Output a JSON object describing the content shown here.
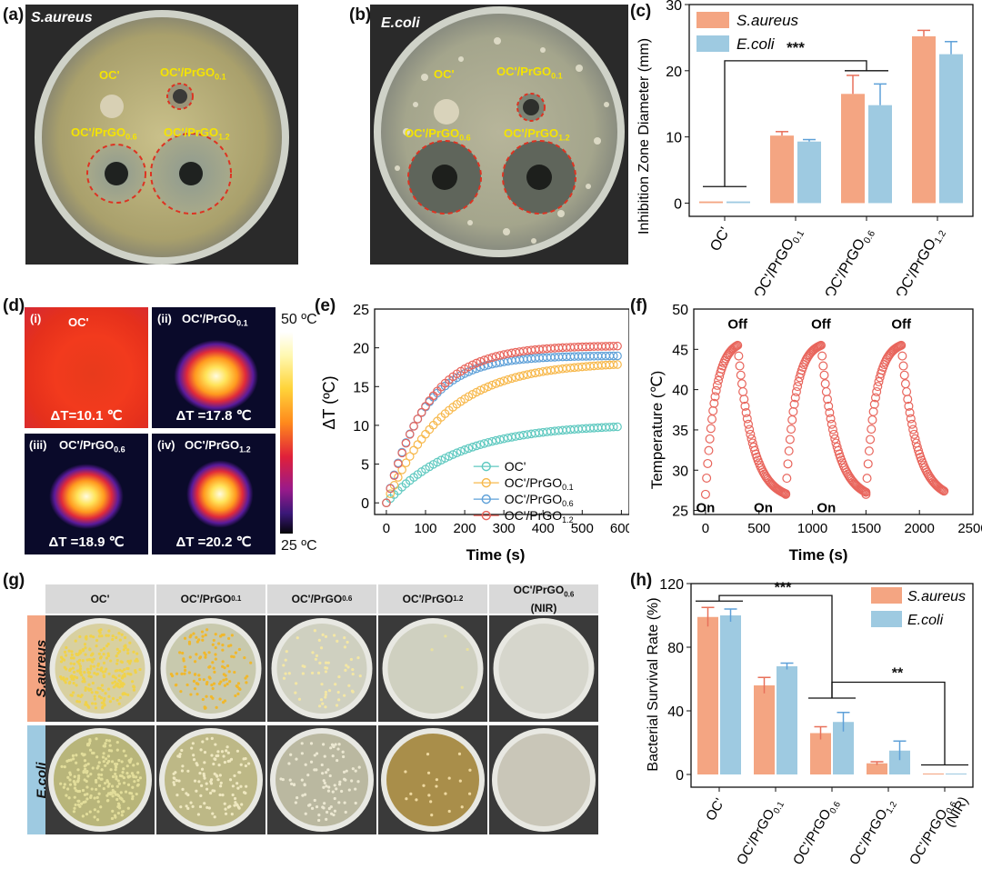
{
  "labels": {
    "a": "(a)",
    "b": "(b)",
    "c": "(c)",
    "d": "(d)",
    "e": "(e)",
    "f": "(f)",
    "g": "(g)",
    "h": "(h)"
  },
  "panel_a": {
    "title": "S.aureus",
    "samples": [
      "OC'",
      "OC'/PrGO0.1",
      "OC'/PrGO0.6",
      "OC'/PrGO1.2"
    ]
  },
  "panel_b": {
    "title": "E.coli",
    "samples": [
      "OC'",
      "OC'/PrGO0.1",
      "OC'/PrGO0.6",
      "OC'/PrGO1.2"
    ]
  },
  "panel_d": {
    "images": [
      {
        "tag": "(i)",
        "name": "OC'",
        "dt": "ΔT=10.1 ℃"
      },
      {
        "tag": "(ii)",
        "name": "OC'/PrGO0.1",
        "dt": "ΔT =17.8 ℃"
      },
      {
        "tag": "(iii)",
        "name": "OC'/PrGO0.6",
        "dt": "ΔT =18.9 ℃"
      },
      {
        "tag": "(iv)",
        "name": "OC'/PrGO1.2",
        "dt": "ΔT =20.2 ℃"
      }
    ],
    "scale_max": "50 ºC",
    "scale_min": "25 ºC"
  },
  "panel_g": {
    "headers": [
      "OC'",
      "OC'/PrGO0.1",
      "OC'/PrGO0.6",
      "OC'/PrGO1.2",
      "OC'/PrGO0.6 (NIR)"
    ],
    "rows": [
      "S.aureus",
      "E.coli"
    ]
  },
  "chart_data": [
    {
      "id": "c",
      "type": "bar",
      "title": "",
      "categories": [
        "OC'",
        "OC'/PrGO0.1",
        "OC'/PrGO0.6",
        "OC'/PrGO1.2"
      ],
      "series": [
        {
          "name": "S.aureus",
          "color": "#f4a582",
          "values": [
            0,
            10.2,
            16.5,
            25.2
          ],
          "errors": [
            0,
            0.6,
            2.8,
            0.9
          ]
        },
        {
          "name": "E.coli",
          "color": "#9ecae1",
          "values": [
            0,
            9.3,
            14.8,
            22.5
          ],
          "errors": [
            0,
            0.3,
            3.2,
            1.9
          ]
        }
      ],
      "ylabel": "Inhibition Zone Diameter (mm)",
      "ylim": [
        -2,
        30
      ],
      "yticks": [
        0,
        10,
        20,
        30
      ],
      "significance": "***"
    },
    {
      "id": "e",
      "type": "scatter",
      "xlabel": "Time (s)",
      "ylabel": "ΔT (ºC)",
      "xlim": [
        -30,
        620
      ],
      "ylim": [
        -1.5,
        25
      ],
      "xticks": [
        0,
        100,
        200,
        300,
        400,
        500,
        600
      ],
      "yticks": [
        0,
        5,
        10,
        15,
        20,
        25
      ],
      "series": [
        {
          "name": "OC'",
          "color": "#5fc9c0",
          "Tmax": 10.2,
          "tau": 180
        },
        {
          "name": "OC'/PrGO0.1",
          "color": "#f7b84b",
          "Tmax": 18.2,
          "tau": 150
        },
        {
          "name": "OC'/PrGO0.6",
          "color": "#5ea0d8",
          "Tmax": 19.0,
          "tau": 95
        },
        {
          "name": "OC'/PrGO1.2",
          "color": "#e8655c",
          "Tmax": 20.3,
          "tau": 105
        }
      ]
    },
    {
      "id": "f",
      "type": "scatter",
      "xlabel": "Time (s)",
      "ylabel": "Temperature (℃)",
      "xlim": [
        -110,
        2500
      ],
      "ylim": [
        24.5,
        50
      ],
      "xticks": [
        0,
        500,
        1000,
        1500,
        2000,
        2500
      ],
      "yticks": [
        25,
        30,
        35,
        40,
        45,
        50
      ],
      "cycles": [
        [
          0,
          300,
          750
        ],
        [
          750,
          1080,
          1500
        ],
        [
          1500,
          1830,
          2230
        ]
      ],
      "tmin": 27,
      "tmax": 45.5,
      "color": "#e8655c",
      "annotations": {
        "on": "On",
        "off": "Off"
      }
    },
    {
      "id": "h",
      "type": "bar",
      "categories": [
        "OC'",
        "OC'/PrGO0.1",
        "OC'/PrGO0.6",
        "OC'/PrGO1.2",
        "OC'/PrGO0.6 (NIR)"
      ],
      "series": [
        {
          "name": "S.aureus",
          "color": "#f4a582",
          "values": [
            99,
            56,
            26,
            7,
            0
          ],
          "errors": [
            6,
            5,
            4,
            1,
            0
          ]
        },
        {
          "name": "E.coli",
          "color": "#9ecae1",
          "values": [
            100,
            68,
            33,
            15,
            0
          ],
          "errors": [
            4,
            2,
            6,
            6,
            0
          ]
        }
      ],
      "ylabel": "Bacterial Survival Rate (%)",
      "ylim": [
        -8,
        120
      ],
      "yticks": [
        0,
        40,
        80,
        120
      ],
      "significance": [
        "***",
        "**"
      ]
    }
  ]
}
